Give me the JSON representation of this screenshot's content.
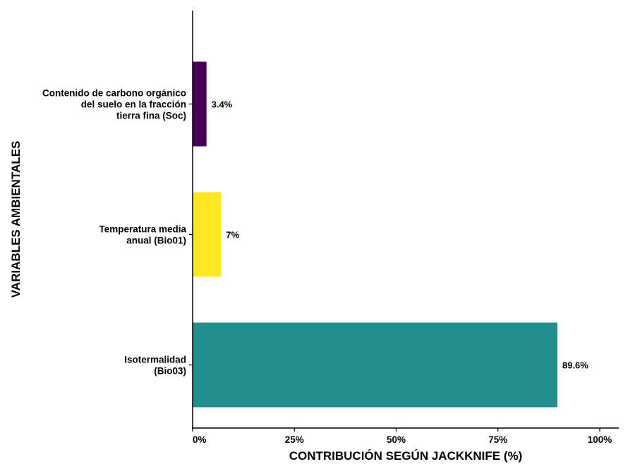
{
  "chart_data": {
    "type": "bar",
    "orientation": "horizontal",
    "xlabel": "CONTRIBUCIÓN SEGÚN JACKKNIFE (%)",
    "ylabel": "VARIABLES AMBIENTALES",
    "xlim": [
      0,
      100
    ],
    "xticks": [
      0,
      25,
      50,
      75,
      100
    ],
    "xtick_labels": [
      "0%",
      "25%",
      "50%",
      "75%",
      "100%"
    ],
    "grid": false,
    "legend": "none",
    "bars": [
      {
        "category_lines": [
          "Contenido de carbono orgánico",
          "del suelo en la fracción",
          "tierra fina (Soc)"
        ],
        "value": 3.4,
        "label": "3.4%",
        "color": "#440154"
      },
      {
        "category_lines": [
          "Temperatura media",
          "anual (Bio01)"
        ],
        "value": 7,
        "label": "7%",
        "color": "#FDE725"
      },
      {
        "category_lines": [
          "Isotermalidad",
          "(Bio03)"
        ],
        "value": 89.6,
        "label": "89.6%",
        "color": "#21908C"
      }
    ]
  }
}
